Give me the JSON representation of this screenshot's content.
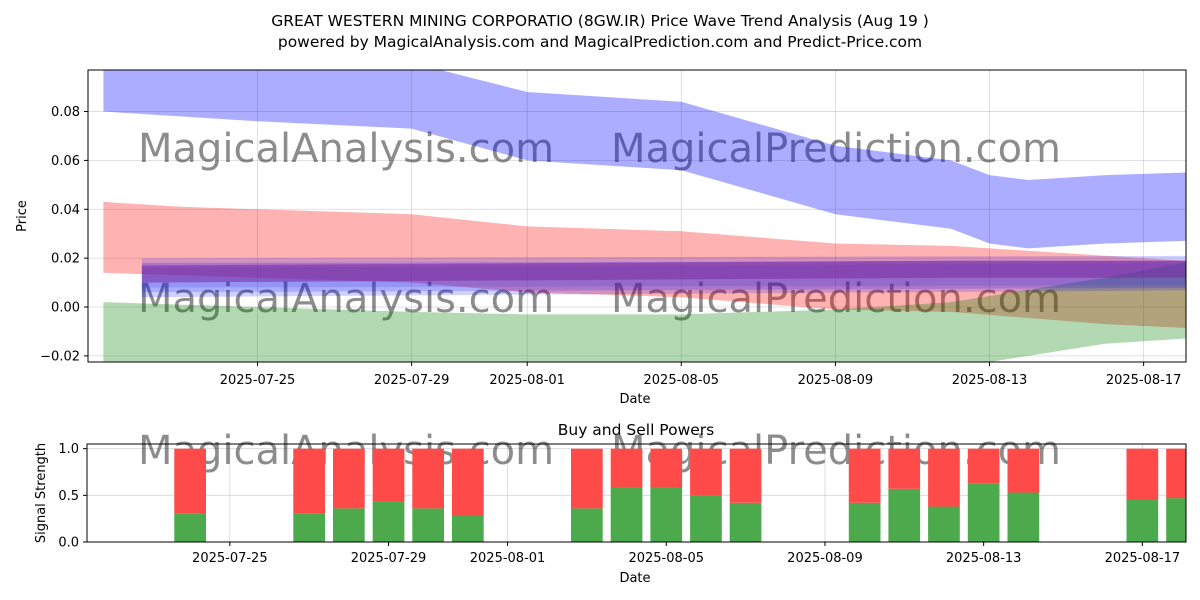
{
  "chart_data": [
    {
      "type": "area",
      "title": "GREAT WESTERN MINING CORPORATIO (8GW.IR) Price Wave Trend Analysis (Aug 19 )",
      "subtitle": "powered by MagicalAnalysis.com and MagicalPrediction.com and Predict-Price.com",
      "xlabel": "Date",
      "ylabel": "Price",
      "xlim": [
        -2.4,
        26.1
      ],
      "ylim": [
        -0.0225,
        0.097
      ],
      "x_start_date": "2025-07-23",
      "x_ticks": [
        {
          "day": 2,
          "label": "2025-07-25"
        },
        {
          "day": 6,
          "label": "2025-07-29"
        },
        {
          "day": 9,
          "label": "2025-08-01"
        },
        {
          "day": 13,
          "label": "2025-08-05"
        },
        {
          "day": 17,
          "label": "2025-08-09"
        },
        {
          "day": 21,
          "label": "2025-08-13"
        },
        {
          "day": 25,
          "label": "2025-08-17"
        }
      ],
      "y_ticks": [
        {
          "value": -0.02,
          "label": "−0.02"
        },
        {
          "value": 0.0,
          "label": "0.00"
        },
        {
          "value": 0.02,
          "label": "0.02"
        },
        {
          "value": 0.04,
          "label": "0.04"
        },
        {
          "value": 0.06,
          "label": "0.06"
        },
        {
          "value": 0.08,
          "label": "0.08"
        }
      ],
      "grid": true,
      "watermarks": [
        "MagicalAnalysis.com",
        "MagicalPrediction.com"
      ],
      "bands": [
        {
          "name": "upper-wave",
          "color": "#0000ff",
          "opacity": 0.32,
          "x": [
            -2,
            0,
            2,
            6,
            9,
            13,
            17,
            20,
            21,
            22,
            24,
            26,
            28
          ],
          "upper": [
            0.1,
            0.1,
            0.1,
            0.1,
            0.088,
            0.084,
            0.066,
            0.06,
            0.054,
            0.052,
            0.054,
            0.055,
            0.057
          ],
          "lower": [
            0.08,
            0.078,
            0.076,
            0.073,
            0.06,
            0.056,
            0.038,
            0.032,
            0.026,
            0.024,
            0.026,
            0.027,
            0.029
          ]
        },
        {
          "name": "middle-wave",
          "color": "#ff0000",
          "opacity": 0.3,
          "x": [
            -2,
            0,
            2,
            6,
            9,
            13,
            17,
            20,
            24,
            28
          ],
          "upper": [
            0.043,
            0.041,
            0.04,
            0.038,
            0.033,
            0.031,
            0.026,
            0.025,
            0.021,
            0.017
          ],
          "lower": [
            0.014,
            0.013,
            0.012,
            0.01,
            0.006,
            0.004,
            -0.001,
            -0.002,
            -0.007,
            -0.01
          ]
        },
        {
          "name": "lower-wave",
          "color": "#008000",
          "opacity": 0.3,
          "x": [
            -2,
            0,
            2,
            6,
            9,
            13,
            17,
            20,
            24,
            28,
            28.7
          ],
          "upper": [
            0.002,
            0.001,
            0.0,
            -0.002,
            -0.003,
            -0.003,
            -0.001,
            0.002,
            0.012,
            0.024,
            -0.003
          ],
          "lower": [
            -0.025,
            -0.025,
            -0.025,
            -0.025,
            -0.025,
            -0.025,
            -0.025,
            -0.025,
            -0.015,
            -0.011,
            -0.003
          ]
        },
        {
          "name": "blue-thin-1",
          "color": "#0000ff",
          "opacity": 0.18,
          "x": [
            -1,
            28
          ],
          "upper": [
            0.02,
            0.021
          ],
          "lower": [
            0.004,
            0.007
          ]
        },
        {
          "name": "blue-thin-2",
          "color": "#0000ff",
          "opacity": 0.18,
          "x": [
            -1,
            28
          ],
          "upper": [
            0.018,
            0.019
          ],
          "lower": [
            0.006,
            0.008
          ]
        },
        {
          "name": "blue-thin-3",
          "color": "#3333cc",
          "opacity": 0.18,
          "x": [
            -1,
            28
          ],
          "upper": [
            0.016,
            0.018
          ],
          "lower": [
            0.008,
            0.009
          ]
        },
        {
          "name": "purple-core",
          "color": "#7a2aa0",
          "opacity": 0.55,
          "x": [
            -1,
            10,
            20,
            28
          ],
          "upper": [
            0.017,
            0.018,
            0.019,
            0.019
          ],
          "lower": [
            0.01,
            0.011,
            0.012,
            0.012
          ]
        }
      ]
    },
    {
      "type": "bar",
      "title": "Buy and Sell Powers",
      "xlabel": "Date",
      "ylabel": "Signal Strength",
      "ylim": [
        0,
        1.05
      ],
      "xlim": [
        -1.6,
        26.1
      ],
      "y_ticks": [
        {
          "value": 0.0,
          "label": "0.0"
        },
        {
          "value": 0.5,
          "label": "0.5"
        },
        {
          "value": 1.0,
          "label": "1.0"
        }
      ],
      "x_ticks": [
        {
          "day": 2,
          "label": "2025-07-25"
        },
        {
          "day": 6,
          "label": "2025-07-29"
        },
        {
          "day": 9,
          "label": "2025-08-01"
        },
        {
          "day": 13,
          "label": "2025-08-05"
        },
        {
          "day": 17,
          "label": "2025-08-09"
        },
        {
          "day": 21,
          "label": "2025-08-13"
        },
        {
          "day": 25,
          "label": "2025-08-17"
        }
      ],
      "buy_color": "#4caa4c",
      "sell_color": "#ff4a4a",
      "series": [
        {
          "name": "Buy",
          "days": [
            1,
            4,
            5,
            6,
            7,
            8,
            11,
            12,
            13,
            14,
            15,
            18,
            19,
            20,
            21,
            22,
            25,
            26
          ],
          "values": [
            0.31,
            0.31,
            0.36,
            0.43,
            0.36,
            0.29,
            0.36,
            0.59,
            0.59,
            0.5,
            0.42,
            0.42,
            0.57,
            0.38,
            0.63,
            0.53,
            0.45,
            0.47
          ]
        },
        {
          "name": "Sell",
          "days": [
            1,
            4,
            5,
            6,
            7,
            8,
            11,
            12,
            13,
            14,
            15,
            18,
            19,
            20,
            21,
            22,
            25,
            26
          ],
          "values": [
            0.69,
            0.69,
            0.64,
            0.57,
            0.64,
            0.71,
            0.64,
            0.41,
            0.41,
            0.5,
            0.58,
            0.58,
            0.43,
            0.62,
            0.37,
            0.47,
            0.55,
            0.53
          ]
        }
      ],
      "watermarks": [
        "MagicalAnalysis.com",
        "MagicalPrediction.com"
      ]
    }
  ]
}
